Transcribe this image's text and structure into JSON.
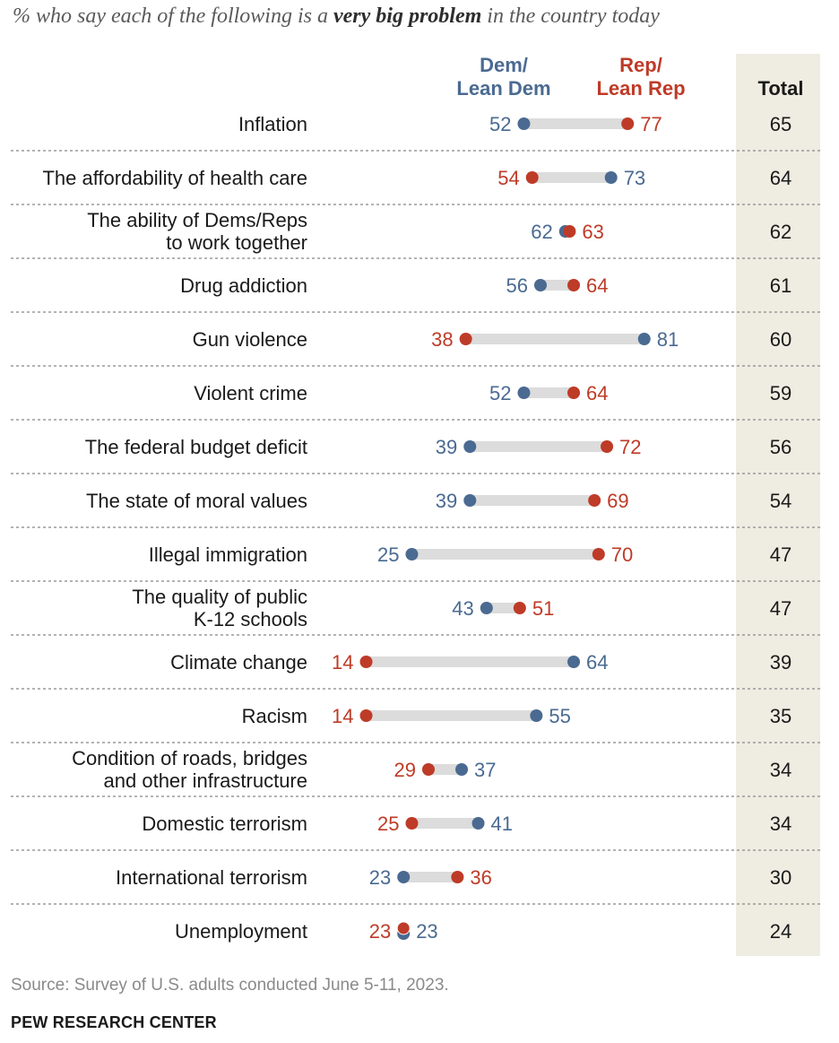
{
  "subtitle": {
    "pre": "% who say each of the following is a ",
    "emph": "very big problem",
    "post": " in the country today"
  },
  "footer": {
    "source": "Source: Survey of U.S. adults conducted June 5-11, 2023.",
    "org": "PEW RESEARCH CENTER"
  },
  "chart_data": {
    "type": "dot",
    "legend": [
      {
        "key": "dem",
        "line1": "Dem/",
        "line2": "Lean Dem",
        "color": "#4a6a91"
      },
      {
        "key": "rep",
        "line1": "Rep/",
        "line2": "Lean Rep",
        "color": "#be3b27"
      }
    ],
    "total_header": "Total",
    "x_range": [
      0,
      100
    ],
    "rows": [
      {
        "label": [
          "Inflation"
        ],
        "dem": 52,
        "rep": 77,
        "total": 65
      },
      {
        "label": [
          "The affordability of health care"
        ],
        "dem": 73,
        "rep": 54,
        "total": 64
      },
      {
        "label": [
          "The ability of Dems/Reps",
          "to work together"
        ],
        "dem": 62,
        "rep": 63,
        "total": 62
      },
      {
        "label": [
          "Drug addiction"
        ],
        "dem": 56,
        "rep": 64,
        "total": 61
      },
      {
        "label": [
          "Gun violence"
        ],
        "dem": 81,
        "rep": 38,
        "total": 60
      },
      {
        "label": [
          "Violent crime"
        ],
        "dem": 52,
        "rep": 64,
        "total": 59
      },
      {
        "label": [
          "The federal budget deficit"
        ],
        "dem": 39,
        "rep": 72,
        "total": 56
      },
      {
        "label": [
          "The state of moral values"
        ],
        "dem": 39,
        "rep": 69,
        "total": 54
      },
      {
        "label": [
          "Illegal immigration"
        ],
        "dem": 25,
        "rep": 70,
        "total": 47
      },
      {
        "label": [
          "The quality of public",
          "K-12 schools"
        ],
        "dem": 43,
        "rep": 51,
        "total": 47
      },
      {
        "label": [
          "Climate change"
        ],
        "dem": 64,
        "rep": 14,
        "total": 39
      },
      {
        "label": [
          "Racism"
        ],
        "dem": 55,
        "rep": 14,
        "total": 35
      },
      {
        "label": [
          "Condition of roads, bridges",
          "and other infrastructure"
        ],
        "dem": 37,
        "rep": 29,
        "total": 34
      },
      {
        "label": [
          "Domestic terrorism"
        ],
        "dem": 41,
        "rep": 25,
        "total": 34
      },
      {
        "label": [
          "International terrorism"
        ],
        "dem": 23,
        "rep": 36,
        "total": 30
      },
      {
        "label": [
          "Unemployment"
        ],
        "dem": 23,
        "rep": 23,
        "total": 24
      }
    ]
  }
}
